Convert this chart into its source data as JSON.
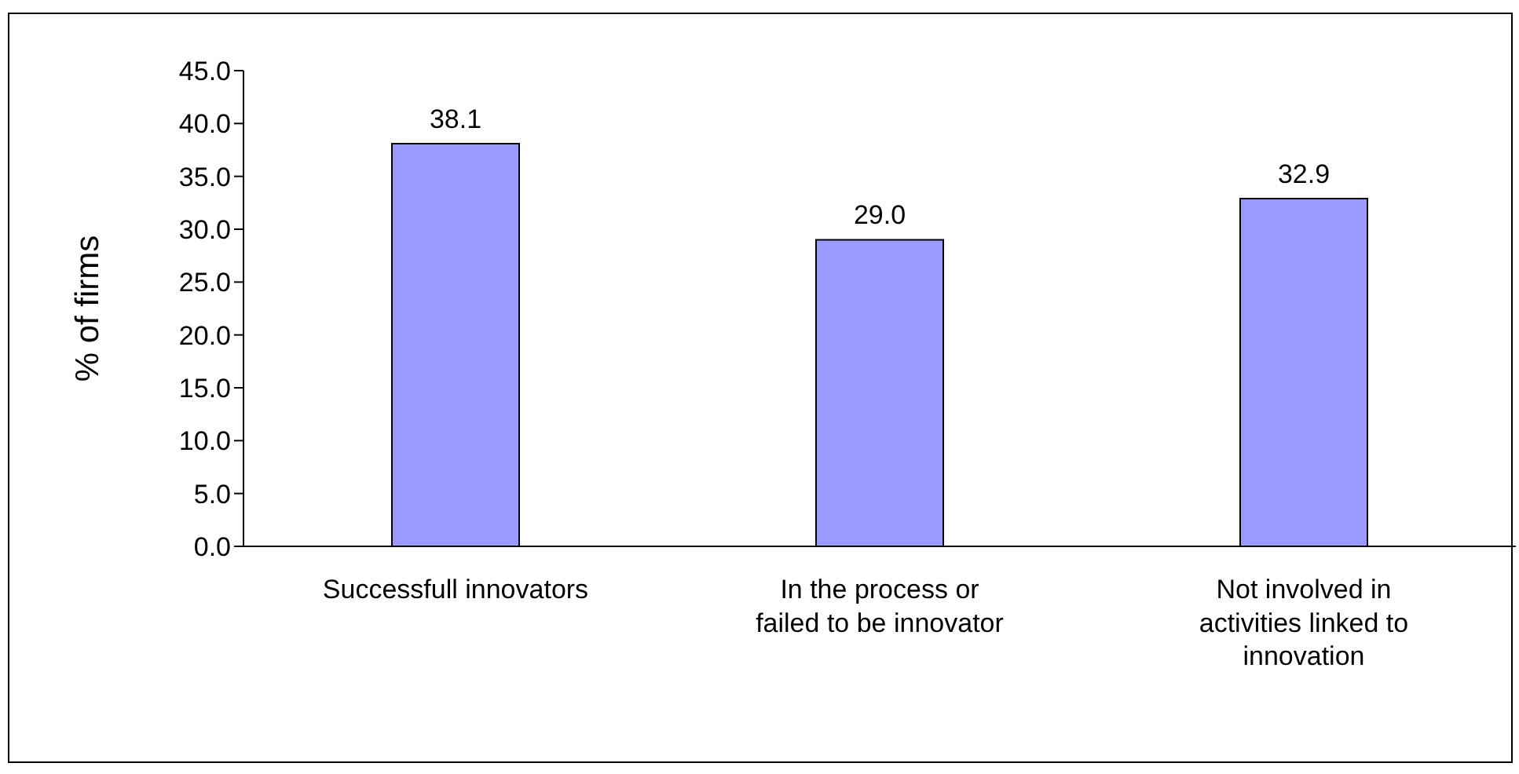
{
  "chart_data": {
    "type": "bar",
    "ylabel": "% of firms",
    "categories": [
      "Successfull innovators",
      "In the process or failed to be innovator",
      "Not involved in activities linked to innovation"
    ],
    "values": [
      38.1,
      29.0,
      32.9
    ],
    "value_labels": [
      "38.1",
      "29.0",
      "32.9"
    ],
    "color": "#9999ff",
    "ylim": [
      0,
      45
    ],
    "yticks": [
      {
        "value": 0,
        "label": "0.0"
      },
      {
        "value": 5,
        "label": "5.0"
      },
      {
        "value": 10,
        "label": "10.0"
      },
      {
        "value": 15,
        "label": "15.0"
      },
      {
        "value": 20,
        "label": "20.0"
      },
      {
        "value": 25,
        "label": "25.0"
      },
      {
        "value": 30,
        "label": "30.0"
      },
      {
        "value": 35,
        "label": "35.0"
      },
      {
        "value": 40,
        "label": "40.0"
      },
      {
        "value": 45,
        "label": "45.0"
      }
    ],
    "grid": false,
    "legend": false
  }
}
